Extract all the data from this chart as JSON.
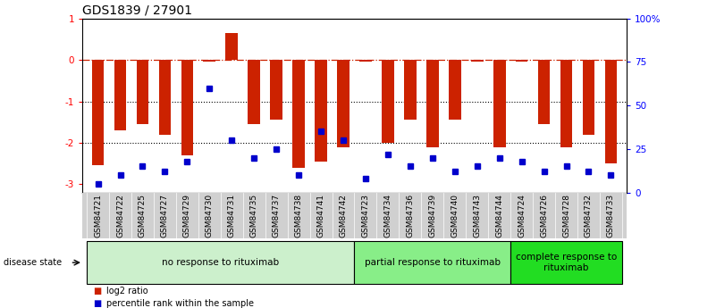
{
  "title": "GDS1839 / 27901",
  "samples": [
    "GSM84721",
    "GSM84722",
    "GSM84725",
    "GSM84727",
    "GSM84729",
    "GSM84730",
    "GSM84731",
    "GSM84735",
    "GSM84737",
    "GSM84738",
    "GSM84741",
    "GSM84742",
    "GSM84723",
    "GSM84734",
    "GSM84736",
    "GSM84739",
    "GSM84740",
    "GSM84743",
    "GSM84744",
    "GSM84724",
    "GSM84726",
    "GSM84728",
    "GSM84732",
    "GSM84733"
  ],
  "log2_ratio": [
    -2.55,
    -1.7,
    -1.55,
    -1.8,
    -2.3,
    -0.05,
    0.65,
    -1.55,
    -1.45,
    -2.6,
    -2.45,
    -2.1,
    -0.05,
    -2.0,
    -1.45,
    -2.1,
    -1.45,
    -0.05,
    -2.1,
    -0.05,
    -1.55,
    -2.1,
    -1.8,
    -2.5
  ],
  "percentile_rank_pct": [
    5,
    10,
    15,
    12,
    18,
    60,
    30,
    20,
    25,
    10,
    35,
    30,
    8,
    22,
    15,
    20,
    12,
    15,
    20,
    18,
    12,
    15,
    12,
    10
  ],
  "groups": [
    {
      "label": "no response to rituximab",
      "start": 0,
      "end": 11,
      "color": "#ccf0cc"
    },
    {
      "label": "partial response to rituximab",
      "start": 12,
      "end": 18,
      "color": "#88ee88"
    },
    {
      "label": "complete response to\nrituximab",
      "start": 19,
      "end": 23,
      "color": "#22dd22"
    }
  ],
  "bar_color": "#cc2200",
  "dot_color": "#0000cc",
  "ylim_left": [
    -3.2,
    1.0
  ],
  "ylim_right": [
    0,
    100
  ],
  "right_ticks": [
    0,
    25,
    50,
    75,
    100
  ],
  "right_tick_labels": [
    "0",
    "25",
    "50",
    "75",
    "100%"
  ],
  "left_ticks": [
    -3,
    -2,
    -1,
    0,
    1
  ],
  "background_color": "#ffffff",
  "bar_width": 0.55,
  "title_fontsize": 10,
  "tick_fontsize": 7.5,
  "sample_fontsize": 6.5,
  "group_fontsize": 7.5
}
